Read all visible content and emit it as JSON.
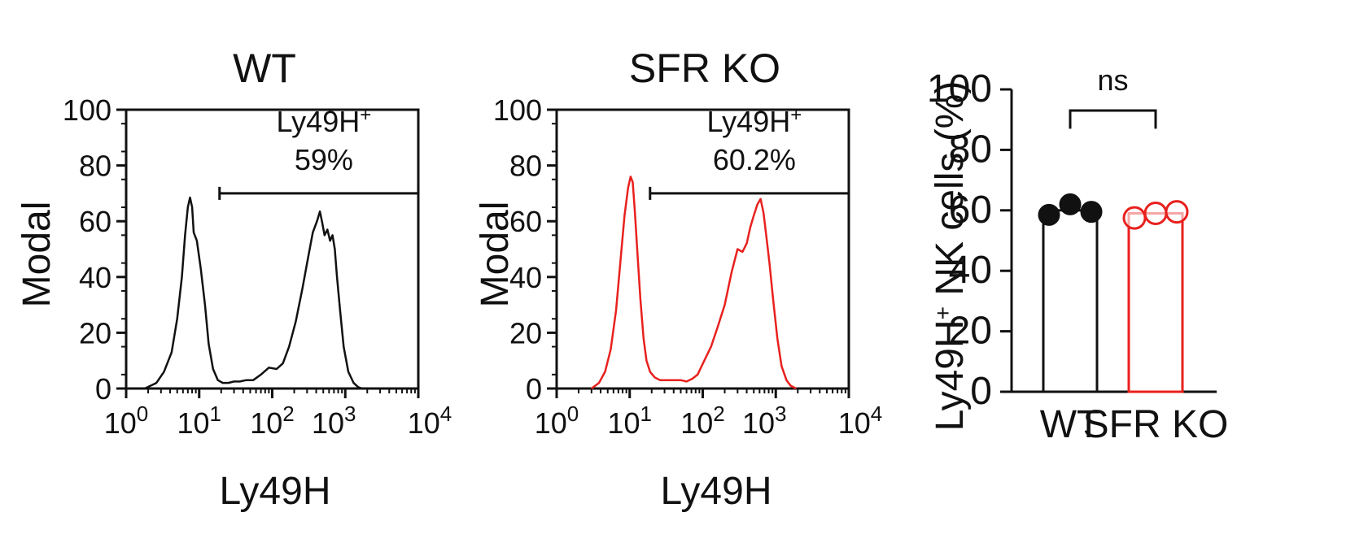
{
  "chart_data": [
    {
      "type": "line",
      "title": "WT",
      "xlabel": "Ly49H",
      "ylabel": "Modal",
      "x_scale": "log",
      "xlim": [
        1,
        10000
      ],
      "ylim": [
        0,
        100
      ],
      "x_ticks": [
        {
          "value": 1,
          "base": "10",
          "exp": "0"
        },
        {
          "value": 10,
          "base": "10",
          "exp": "1"
        },
        {
          "value": 100,
          "base": "10",
          "exp": "2"
        },
        {
          "value": 1000,
          "base": "10",
          "exp": "3"
        },
        {
          "value": 10000,
          "base": "10",
          "exp": "4"
        }
      ],
      "y_ticks": [
        "0",
        "20",
        "40",
        "60",
        "80",
        "100"
      ],
      "color": "#111111",
      "gate": {
        "label": "Ly49H",
        "label_sup": "+",
        "percent": "59%",
        "x_range": [
          19,
          10000
        ],
        "y": 70
      },
      "series": [
        {
          "x": [
            1.8,
            2.6,
            3.3,
            4.2,
            5.0,
            5.8,
            6.4,
            7.0,
            7.5,
            8.0,
            8.4,
            9.3,
            10.5,
            12.0,
            13.5,
            15.5,
            18.0,
            21.0,
            25.0,
            30.0,
            36.0,
            44.0,
            55.0,
            70.0,
            90.0,
            115.0,
            140.0,
            170.0,
            210.0,
            260.0,
            310.0,
            360.0,
            410.0,
            450.0,
            480.0,
            520.0,
            570.0,
            620.0,
            670.0,
            720.0,
            770.0,
            850.0,
            950.0,
            1100.0,
            1300.0,
            1500.0,
            1700.0
          ],
          "y": [
            0,
            2,
            6,
            13,
            25,
            40,
            55,
            65,
            68.5,
            65,
            56,
            53,
            43,
            30,
            16,
            7,
            3,
            2,
            2,
            2.5,
            2.5,
            3,
            3,
            5,
            7.5,
            7,
            9,
            15,
            24,
            36,
            47,
            56,
            60,
            63.5,
            60,
            55,
            57,
            53,
            55,
            50,
            40,
            28,
            15,
            6,
            2,
            0.5,
            0
          ]
        }
      ]
    },
    {
      "type": "line",
      "title": "SFR KO",
      "xlabel": "Ly49H",
      "ylabel": "Modal",
      "x_scale": "log",
      "xlim": [
        1,
        10000
      ],
      "ylim": [
        0,
        100
      ],
      "x_ticks": [
        {
          "value": 1,
          "base": "10",
          "exp": "0"
        },
        {
          "value": 10,
          "base": "10",
          "exp": "1"
        },
        {
          "value": 100,
          "base": "10",
          "exp": "2"
        },
        {
          "value": 1000,
          "base": "10",
          "exp": "3"
        },
        {
          "value": 10000,
          "base": "10",
          "exp": "4"
        }
      ],
      "y_ticks": [
        "0",
        "20",
        "40",
        "60",
        "80",
        "100"
      ],
      "color": "#e8211e",
      "gate": {
        "label": "Ly49H",
        "label_sup": "+",
        "percent": "60.2%",
        "x_range": [
          19,
          10000
        ],
        "y": 70
      },
      "series": [
        {
          "x": [
            3.0,
            3.8,
            4.6,
            5.5,
            6.5,
            7.5,
            8.5,
            9.5,
            10.3,
            11.0,
            11.8,
            12.8,
            14.0,
            15.5,
            17.0,
            19.0,
            22.0,
            26.0,
            32.0,
            40.0,
            50.0,
            60.0,
            72.0,
            85.0,
            105.0,
            130.0,
            160.0,
            200.0,
            250.0,
            300.0,
            350.0,
            400.0,
            450.0,
            500.0,
            560.0,
            620.0,
            680.0,
            740.0,
            820.0,
            920.0,
            1050.0,
            1200.0,
            1400.0,
            1600.0,
            1900.0
          ],
          "y": [
            0,
            2,
            6,
            14,
            28,
            46,
            62,
            72,
            76,
            74,
            63,
            48,
            32,
            18,
            10,
            6,
            4,
            3,
            3,
            3,
            3,
            2.5,
            3.5,
            5,
            10,
            15,
            22,
            30,
            42,
            50,
            49,
            52,
            58,
            62,
            66,
            68,
            63,
            55,
            45,
            32,
            18,
            8,
            3,
            1,
            0
          ]
        }
      ]
    },
    {
      "type": "bar",
      "categories": [
        "WT",
        "SFR KO"
      ],
      "values": [
        60,
        59
      ],
      "ylabel": "Ly49H",
      "ylabel_sup": "+",
      "ylabel_rest": " NK cells (%)",
      "ylim": [
        0,
        100
      ],
      "y_ticks": [
        "0",
        "20",
        "40",
        "60",
        "80",
        "100"
      ],
      "colors": [
        "#111111",
        "#e8211e"
      ],
      "points": [
        [
          58.5,
          62,
          59.5
        ],
        [
          57.5,
          59,
          59.5
        ]
      ],
      "significance": "ns"
    }
  ]
}
